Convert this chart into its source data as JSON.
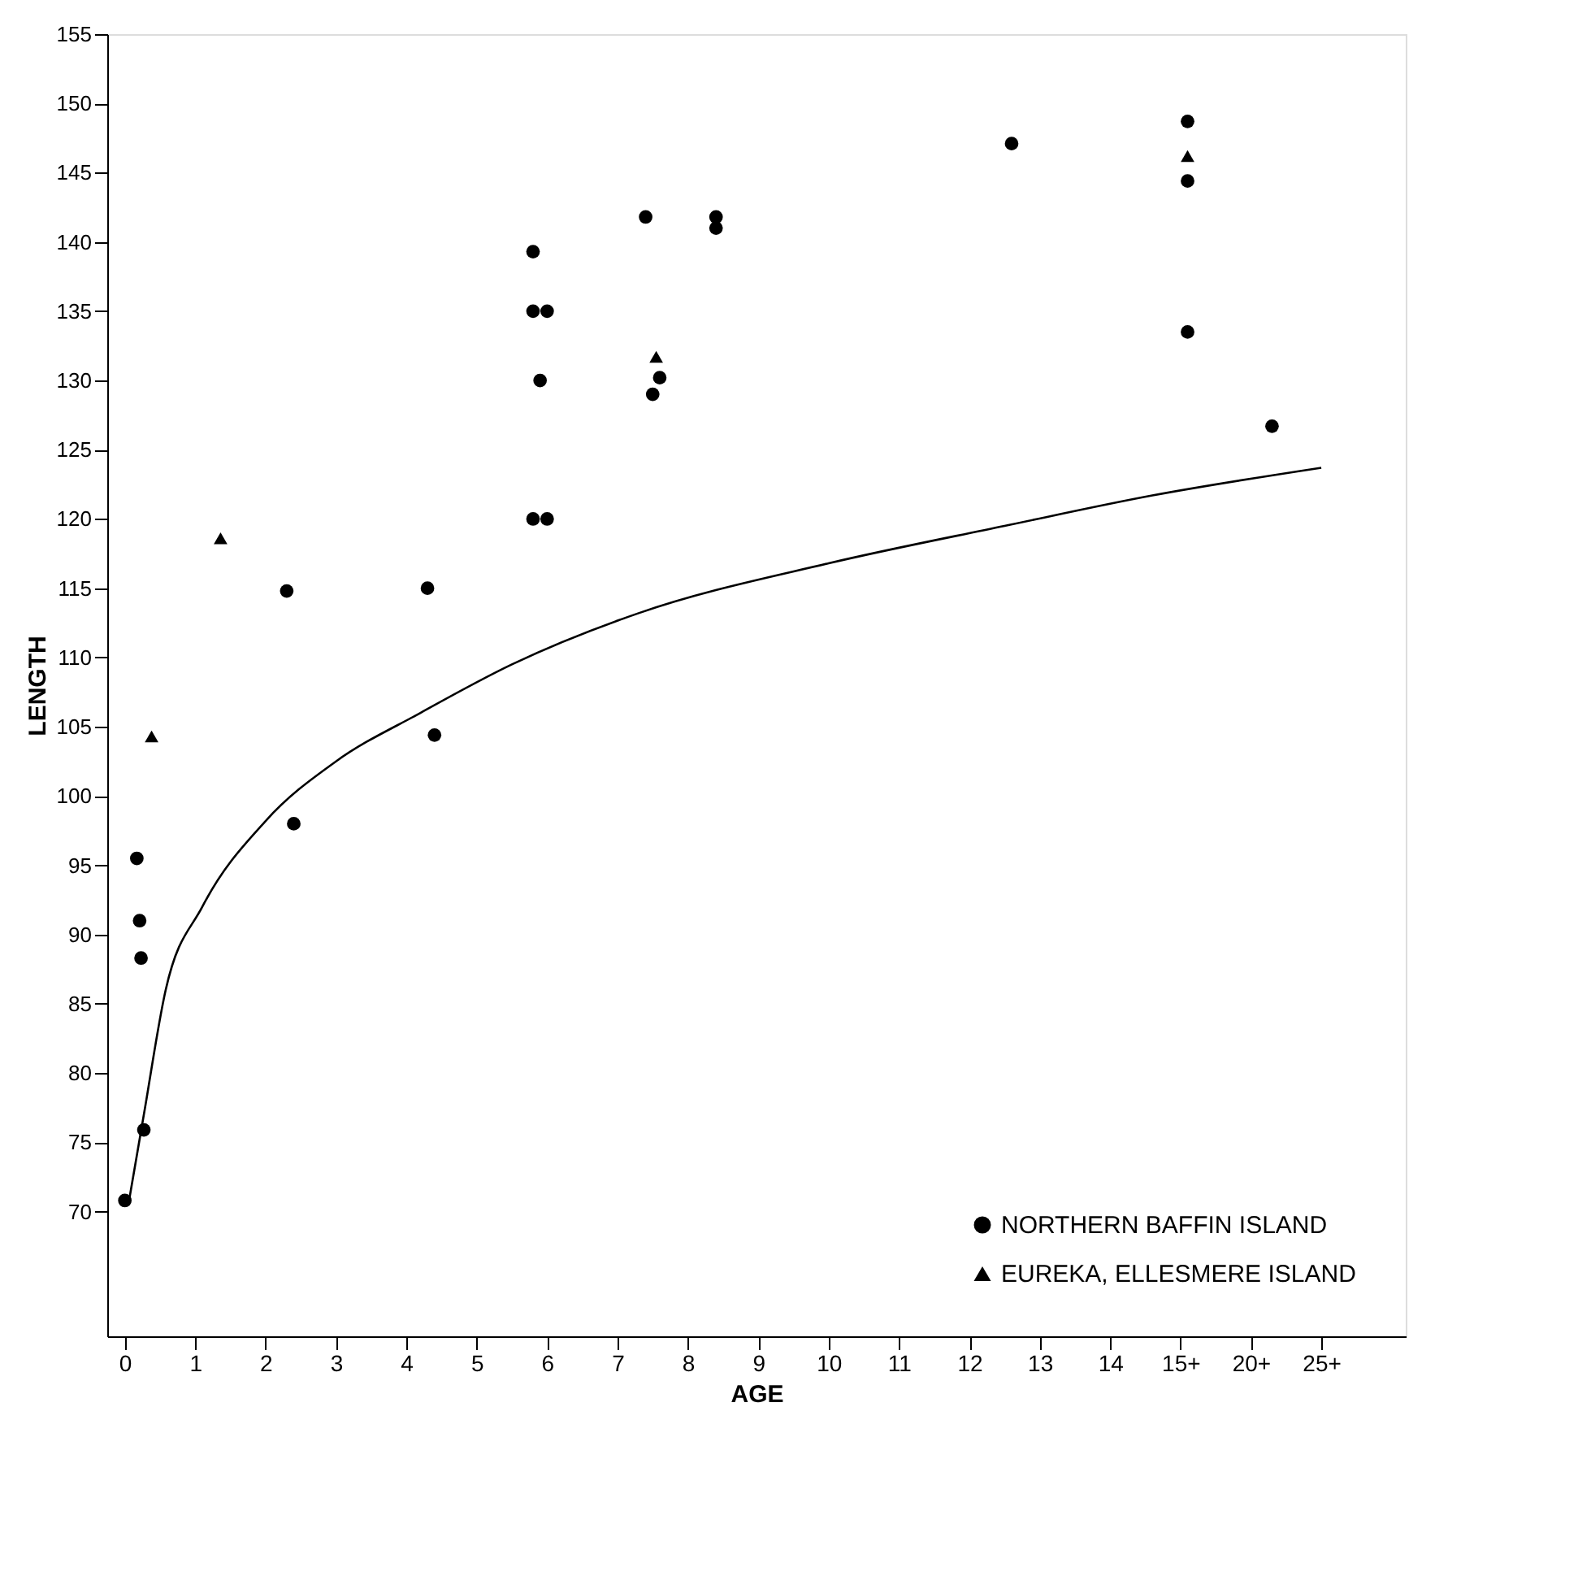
{
  "chart_data": {
    "type": "scatter",
    "xlabel": "AGE",
    "ylabel": "LENGTH",
    "xlim": [
      -0.25,
      18.2
    ],
    "ylim": [
      61,
      155
    ],
    "xticks": [
      0,
      1,
      2,
      3,
      4,
      5,
      6,
      7,
      8,
      9,
      10,
      11,
      12,
      13,
      14,
      {
        "value": 15,
        "label": "15+"
      },
      {
        "value": 16,
        "label": "20+"
      },
      {
        "value": 17,
        "label": "25+"
      }
    ],
    "yticks": [
      70,
      75,
      80,
      85,
      90,
      95,
      100,
      105,
      110,
      115,
      120,
      125,
      130,
      135,
      140,
      145,
      150,
      155
    ],
    "grid": false,
    "legend": "bottom right",
    "series": [
      {
        "name": "NORTHERN BAFFIN ISLAND",
        "color": "#000000",
        "marker": "circle",
        "x": [
          0,
          0.27,
          0.17,
          0.21,
          0.23,
          2.3,
          2.4,
          4.3,
          4.4,
          5.8,
          5.8,
          6.0,
          5.9,
          5.8,
          6.0,
          7.4,
          7.5,
          7.6,
          8.4,
          8.4,
          12.6,
          15.1,
          15.1,
          15.1,
          16.3
        ],
        "values": [
          70.8,
          75.9,
          95.5,
          91,
          88.3,
          114.8,
          98,
          115,
          104.4,
          139.3,
          135,
          135,
          130,
          120,
          120,
          141.8,
          129,
          130.2,
          141.8,
          141,
          147.1,
          148.7,
          144.4,
          133.5,
          126.7
        ]
      },
      {
        "name": "EUREKA, ELLESMERE ISLAND",
        "color": "#000000",
        "marker": "triangle",
        "x": [
          0.38,
          1.36,
          7.55,
          15.1
        ],
        "values": [
          104.3,
          118.6,
          131.7,
          146.2
        ]
      },
      {
        "type": "line",
        "color": "#000000",
        "line_style": "solid",
        "x": [
          0.06,
          0.27,
          0.58,
          1.1,
          2,
          3,
          4.2,
          5.5,
          7.3,
          10,
          12.5,
          14.6,
          17
        ],
        "values": [
          70.8,
          77,
          86,
          92,
          98.2,
          102.5,
          106,
          109.5,
          113.2,
          116.8,
          119.5,
          121.7,
          123.7
        ]
      }
    ]
  }
}
